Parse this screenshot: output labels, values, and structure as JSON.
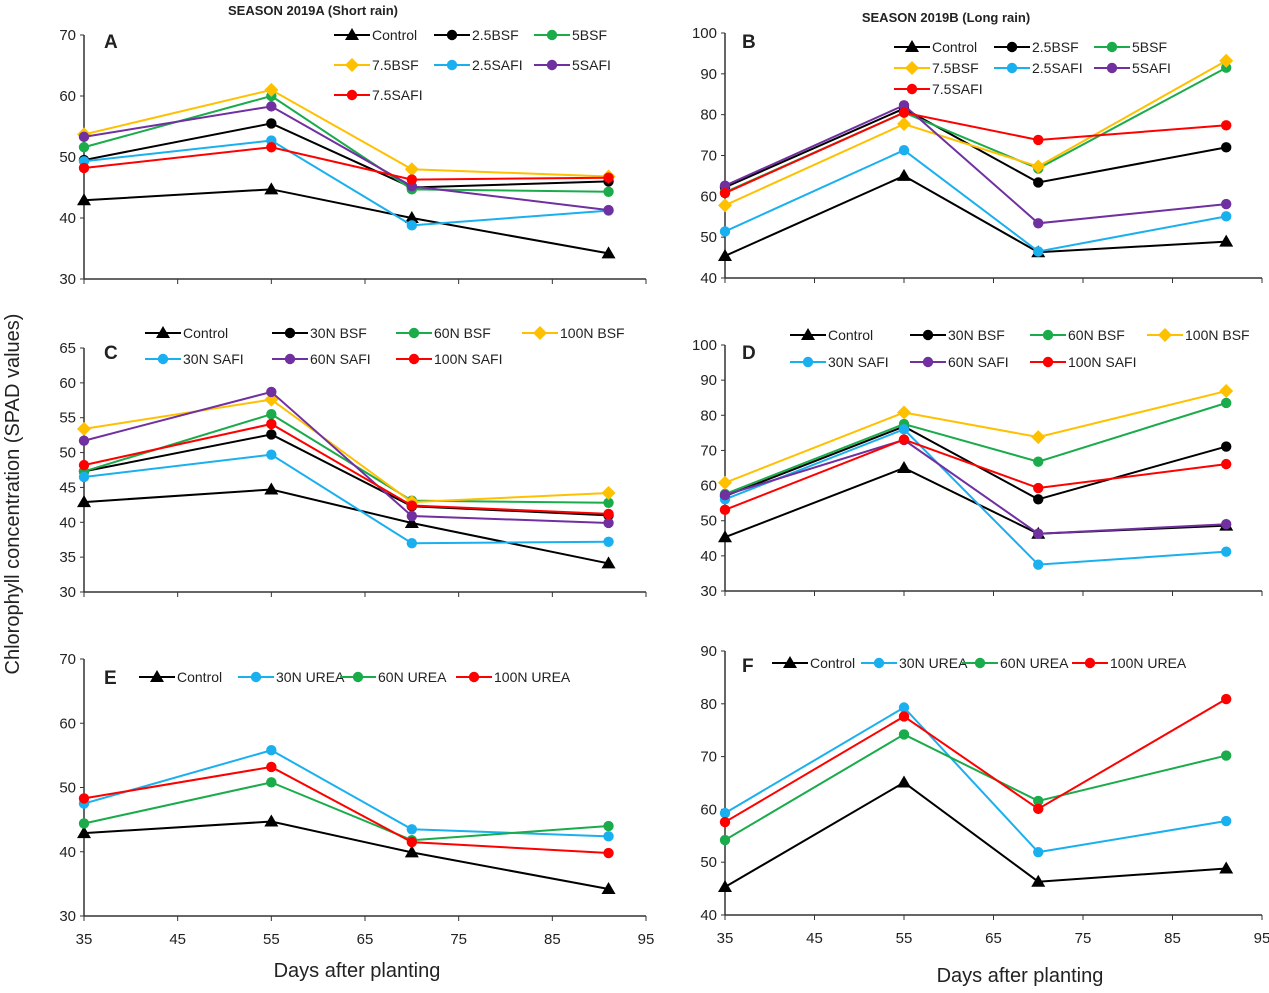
{
  "figure": {
    "ylabel": "Chlorophyll concentration (SPAD values)",
    "xlabel": "Days after planting"
  },
  "chart_data": [
    {
      "type": "line",
      "panel_label": "A",
      "title": "SEASON 2019A (Short rain)",
      "x": [
        35,
        55,
        70,
        91
      ],
      "xlim": [
        35,
        95
      ],
      "xticks": [
        35,
        45,
        55,
        65,
        75,
        85,
        95
      ],
      "show_xtick_labels": false,
      "ylim": [
        30,
        70
      ],
      "yticks": [
        30,
        40,
        50,
        60,
        70
      ],
      "grid": false,
      "legend": "top-right",
      "series": [
        {
          "name": "Control",
          "color": "#000000",
          "marker": "triangle",
          "values": [
            42.9,
            44.7,
            40.0,
            34.2
          ]
        },
        {
          "name": "2.5BSF",
          "color": "#000000",
          "marker": "circle",
          "values": [
            49.5,
            55.5,
            45.0,
            46.0
          ]
        },
        {
          "name": "5BSF",
          "color": "#1aab4b",
          "marker": "circle",
          "values": [
            51.6,
            60.0,
            44.7,
            44.3
          ]
        },
        {
          "name": "7.5BSF",
          "color": "#ffc000",
          "marker": "diamond",
          "values": [
            53.7,
            61.0,
            48.0,
            46.8
          ]
        },
        {
          "name": "2.5SAFI",
          "color": "#1ab0ef",
          "marker": "circle",
          "values": [
            49.3,
            52.7,
            38.8,
            41.2
          ]
        },
        {
          "name": "5SAFI",
          "color": "#7030a0",
          "marker": "circle",
          "values": [
            53.3,
            58.3,
            45.2,
            41.3
          ]
        },
        {
          "name": "7.5SAFI",
          "color": "#ff0000",
          "marker": "circle",
          "values": [
            48.2,
            51.6,
            46.3,
            46.6
          ]
        }
      ]
    },
    {
      "type": "line",
      "panel_label": "B",
      "title": "SEASON 2019B (Long rain)",
      "x": [
        35,
        55,
        70,
        91
      ],
      "xlim": [
        35,
        95
      ],
      "xticks": [
        35,
        45,
        55,
        65,
        75,
        85,
        95
      ],
      "show_xtick_labels": false,
      "ylim": [
        40,
        100
      ],
      "yticks": [
        40,
        50,
        60,
        70,
        80,
        90,
        100
      ],
      "grid": false,
      "legend": "top-right",
      "series": [
        {
          "name": "Control",
          "color": "#000000",
          "marker": "triangle",
          "values": [
            45.4,
            65.0,
            46.3,
            48.9
          ]
        },
        {
          "name": "2.5BSF",
          "color": "#000000",
          "marker": "circle",
          "values": [
            62.2,
            81.5,
            63.4,
            72.0
          ]
        },
        {
          "name": "5BSF",
          "color": "#1aab4b",
          "marker": "circle",
          "values": [
            61.0,
            80.5,
            66.8,
            91.5
          ]
        },
        {
          "name": "7.5BSF",
          "color": "#ffc000",
          "marker": "diamond",
          "values": [
            57.8,
            77.7,
            67.3,
            93.2
          ]
        },
        {
          "name": "2.5SAFI",
          "color": "#1ab0ef",
          "marker": "circle",
          "values": [
            51.4,
            71.3,
            46.5,
            55.1
          ]
        },
        {
          "name": "5SAFI",
          "color": "#7030a0",
          "marker": "circle",
          "values": [
            62.6,
            82.3,
            53.4,
            58.1
          ]
        },
        {
          "name": "7.5SAFI",
          "color": "#ff0000",
          "marker": "circle",
          "values": [
            60.8,
            80.5,
            73.8,
            77.4
          ]
        }
      ]
    },
    {
      "type": "line",
      "panel_label": "C",
      "title": "",
      "x": [
        35,
        55,
        70,
        91
      ],
      "xlim": [
        35,
        95
      ],
      "xticks": [
        35,
        45,
        55,
        65,
        75,
        85,
        95
      ],
      "show_xtick_labels": false,
      "ylim": [
        30,
        65
      ],
      "yticks": [
        30,
        35,
        40,
        45,
        50,
        55,
        60,
        65
      ],
      "grid": false,
      "legend": "top",
      "series": [
        {
          "name": "Control",
          "color": "#000000",
          "marker": "triangle",
          "values": [
            42.9,
            44.7,
            39.9,
            34.1
          ]
        },
        {
          "name": "30N BSF",
          "color": "#000000",
          "marker": "circle",
          "values": [
            47.3,
            52.6,
            42.3,
            41.0
          ]
        },
        {
          "name": "60N BSF",
          "color": "#1aab4b",
          "marker": "circle",
          "values": [
            47.3,
            55.5,
            43.1,
            42.8
          ]
        },
        {
          "name": "100N BSF",
          "color": "#ffc000",
          "marker": "diamond",
          "values": [
            53.4,
            57.6,
            42.9,
            44.2
          ]
        },
        {
          "name": "30N SAFI",
          "color": "#1ab0ef",
          "marker": "circle",
          "values": [
            46.5,
            49.7,
            37.0,
            37.2
          ]
        },
        {
          "name": "60N SAFI",
          "color": "#7030a0",
          "marker": "circle",
          "values": [
            51.7,
            58.7,
            40.9,
            39.9
          ]
        },
        {
          "name": "100N SAFI",
          "color": "#ff0000",
          "marker": "circle",
          "values": [
            48.2,
            54.1,
            42.4,
            41.2
          ]
        }
      ]
    },
    {
      "type": "line",
      "panel_label": "D",
      "title": "",
      "x": [
        35,
        55,
        70,
        91
      ],
      "xlim": [
        35,
        95
      ],
      "xticks": [
        35,
        45,
        55,
        65,
        75,
        85,
        95
      ],
      "show_xtick_labels": false,
      "ylim": [
        30,
        100
      ],
      "yticks": [
        30,
        40,
        50,
        60,
        70,
        80,
        90,
        100
      ],
      "grid": false,
      "legend": "top",
      "series": [
        {
          "name": "Control",
          "color": "#000000",
          "marker": "triangle",
          "values": [
            45.3,
            65.0,
            46.3,
            48.6
          ]
        },
        {
          "name": "30N BSF",
          "color": "#000000",
          "marker": "circle",
          "values": [
            57.0,
            76.8,
            56.1,
            71.1
          ]
        },
        {
          "name": "60N BSF",
          "color": "#1aab4b",
          "marker": "circle",
          "values": [
            57.6,
            77.5,
            66.8,
            83.5
          ]
        },
        {
          "name": "100N BSF",
          "color": "#ffc000",
          "marker": "diamond",
          "values": [
            60.8,
            80.8,
            73.8,
            86.9
          ]
        },
        {
          "name": "30N SAFI",
          "color": "#1ab0ef",
          "marker": "circle",
          "values": [
            56.1,
            76.0,
            37.5,
            41.2
          ]
        },
        {
          "name": "60N SAFI",
          "color": "#7030a0",
          "marker": "circle",
          "values": [
            57.3,
            73.0,
            46.3,
            49.0
          ]
        },
        {
          "name": "100N SAFI",
          "color": "#ff0000",
          "marker": "circle",
          "values": [
            53.1,
            73.1,
            59.3,
            66.1
          ]
        }
      ]
    },
    {
      "type": "line",
      "panel_label": "E",
      "title": "",
      "x": [
        35,
        55,
        70,
        91
      ],
      "xlim": [
        35,
        95
      ],
      "xticks": [
        35,
        45,
        55,
        65,
        75,
        85,
        95
      ],
      "show_xtick_labels": true,
      "ylim": [
        30,
        70
      ],
      "yticks": [
        30,
        40,
        50,
        60,
        70
      ],
      "grid": false,
      "legend": "top",
      "series": [
        {
          "name": "Control",
          "color": "#000000",
          "marker": "triangle",
          "values": [
            42.9,
            44.7,
            39.9,
            34.2
          ]
        },
        {
          "name": "30N UREA",
          "color": "#1ab0ef",
          "marker": "circle",
          "values": [
            47.5,
            55.8,
            43.5,
            42.4
          ]
        },
        {
          "name": "60N UREA",
          "color": "#1aab4b",
          "marker": "circle",
          "values": [
            44.4,
            50.8,
            41.8,
            44.0
          ]
        },
        {
          "name": "100N UREA",
          "color": "#ff0000",
          "marker": "circle",
          "values": [
            48.3,
            53.2,
            41.5,
            39.8
          ]
        }
      ]
    },
    {
      "type": "line",
      "panel_label": "F",
      "title": "",
      "x": [
        35,
        55,
        70,
        91
      ],
      "xlim": [
        35,
        95
      ],
      "xticks": [
        35,
        45,
        55,
        65,
        75,
        85,
        95
      ],
      "show_xtick_labels": true,
      "ylim": [
        40,
        90
      ],
      "yticks": [
        40,
        50,
        60,
        70,
        80,
        90
      ],
      "grid": false,
      "legend": "top",
      "series": [
        {
          "name": "Control",
          "color": "#000000",
          "marker": "triangle",
          "values": [
            45.3,
            65.1,
            46.3,
            48.8
          ]
        },
        {
          "name": "30N UREA",
          "color": "#1ab0ef",
          "marker": "circle",
          "values": [
            59.3,
            79.3,
            51.9,
            57.8
          ]
        },
        {
          "name": "60N UREA",
          "color": "#1aab4b",
          "marker": "circle",
          "values": [
            54.2,
            74.2,
            61.6,
            70.2
          ]
        },
        {
          "name": "100N UREA",
          "color": "#ff0000",
          "marker": "circle",
          "values": [
            57.6,
            77.6,
            60.1,
            80.9
          ]
        }
      ]
    }
  ]
}
